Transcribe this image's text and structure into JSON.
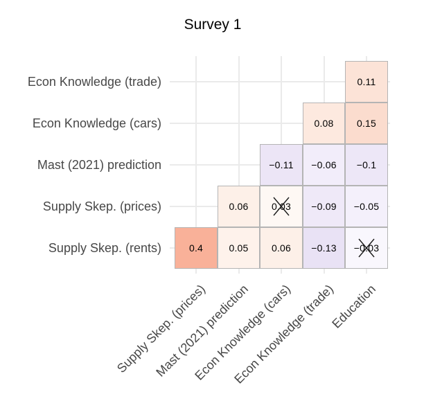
{
  "chart_data": {
    "type": "heatmap",
    "title": "Survey 1",
    "y_categories": [
      "Econ Knowledge (trade)",
      "Econ Knowledge (cars)",
      "Mast (2021) prediction",
      "Supply Skep. (prices)",
      "Supply Skep. (rents)"
    ],
    "x_categories": [
      "Supply Skep. (prices)",
      "Mast (2021) prediction",
      "Econ Knowledge (cars)",
      "Econ Knowledge (trade)",
      "Education"
    ],
    "cells": [
      {
        "row": 0,
        "col": 4,
        "row_name": "Econ Knowledge (trade)",
        "col_name": "Education",
        "value": 0.11,
        "label": "0.11",
        "crossed": false,
        "color": "#FCE3D7"
      },
      {
        "row": 1,
        "col": 3,
        "row_name": "Econ Knowledge (cars)",
        "col_name": "Econ Knowledge (trade)",
        "value": 0.08,
        "label": "0.08",
        "crossed": false,
        "color": "#FDE9DF"
      },
      {
        "row": 1,
        "col": 4,
        "row_name": "Econ Knowledge (cars)",
        "col_name": "Education",
        "value": 0.15,
        "label": "0.15",
        "crossed": false,
        "color": "#FBDCCE"
      },
      {
        "row": 2,
        "col": 2,
        "row_name": "Mast (2021) prediction",
        "col_name": "Econ Knowledge (cars)",
        "value": -0.11,
        "label": "−0.11",
        "crossed": false,
        "color": "#ECE5F6"
      },
      {
        "row": 2,
        "col": 3,
        "row_name": "Mast (2021) prediction",
        "col_name": "Econ Knowledge (trade)",
        "value": -0.06,
        "label": "−0.06",
        "crossed": false,
        "color": "#F2EDFA"
      },
      {
        "row": 2,
        "col": 4,
        "row_name": "Mast (2021) prediction",
        "col_name": "Education",
        "value": -0.1,
        "label": "−0.1",
        "crossed": false,
        "color": "#EDE7F7"
      },
      {
        "row": 3,
        "col": 1,
        "row_name": "Supply Skep. (prices)",
        "col_name": "Mast (2021) prediction",
        "value": 0.06,
        "label": "0.06",
        "crossed": false,
        "color": "#FDF0E8"
      },
      {
        "row": 3,
        "col": 2,
        "row_name": "Supply Skep. (prices)",
        "col_name": "Econ Knowledge (cars)",
        "value": 0.03,
        "label": "0.03",
        "crossed": true,
        "color": "#FEF8F4"
      },
      {
        "row": 3,
        "col": 3,
        "row_name": "Supply Skep. (prices)",
        "col_name": "Econ Knowledge (trade)",
        "value": -0.09,
        "label": "−0.09",
        "crossed": false,
        "color": "#EFE9F8"
      },
      {
        "row": 3,
        "col": 4,
        "row_name": "Supply Skep. (prices)",
        "col_name": "Education",
        "value": -0.05,
        "label": "−0.05",
        "crossed": false,
        "color": "#F4F0FB"
      },
      {
        "row": 4,
        "col": 0,
        "row_name": "Supply Skep. (rents)",
        "col_name": "Supply Skep. (prices)",
        "value": 0.4,
        "label": "0.4",
        "crossed": false,
        "color": "#F9B199"
      },
      {
        "row": 4,
        "col": 1,
        "row_name": "Supply Skep. (rents)",
        "col_name": "Mast (2021) prediction",
        "value": 0.05,
        "label": "0.05",
        "crossed": false,
        "color": "#FEF2EB"
      },
      {
        "row": 4,
        "col": 2,
        "row_name": "Supply Skep. (rents)",
        "col_name": "Econ Knowledge (cars)",
        "value": 0.06,
        "label": "0.06",
        "crossed": false,
        "color": "#FDF0E8"
      },
      {
        "row": 4,
        "col": 3,
        "row_name": "Supply Skep. (rents)",
        "col_name": "Econ Knowledge (trade)",
        "value": -0.13,
        "label": "−0.13",
        "crossed": false,
        "color": "#E9E2F5"
      },
      {
        "row": 4,
        "col": 4,
        "row_name": "Supply Skep. (rents)",
        "col_name": "Education",
        "value": -0.03,
        "label": "−0.03",
        "crossed": true,
        "color": "#F9F7FD"
      }
    ],
    "crossed_meaning": "not significant (crossed out)",
    "colorscale": {
      "domain": [
        -1,
        1
      ],
      "min_color": "#5620B2",
      "mid_color": "#FFFFFF",
      "max_color": "#F03C00"
    },
    "legend": "none",
    "grid": true
  },
  "style": {
    "background": "#FFFFFF",
    "grid_color": "#EAEAEA",
    "cell_border_color": "#B4B4B4",
    "axis_text_color": "#474747",
    "title_color": "#000000",
    "value_text_color": "#000000",
    "crossmark_color": "#1A1A1A"
  }
}
